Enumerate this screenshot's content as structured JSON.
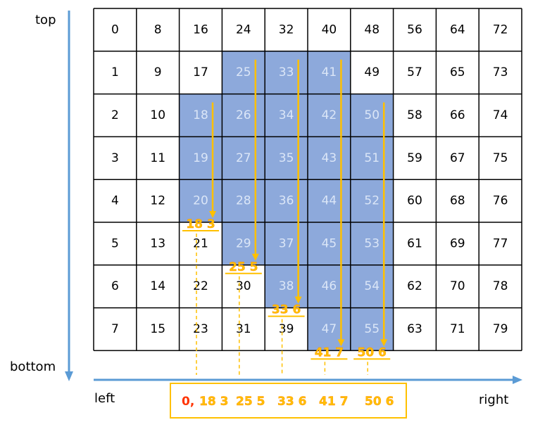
{
  "axes": {
    "top_label": "top",
    "bottom_label": "bottom",
    "left_label": "left",
    "right_label": "right"
  },
  "grid": {
    "rows": 8,
    "cols": 10,
    "shaded_columns": [
      {
        "col": 2,
        "values": [
          18,
          19,
          20
        ]
      },
      {
        "col": 3,
        "values": [
          25,
          26,
          27,
          28,
          29
        ]
      },
      {
        "col": 4,
        "values": [
          33,
          34,
          35,
          36,
          37,
          38
        ]
      },
      {
        "col": 5,
        "values": [
          41,
          42,
          43,
          44,
          45,
          46,
          47
        ]
      },
      {
        "col": 6,
        "values": [
          50,
          51,
          52,
          53,
          54,
          55
        ]
      }
    ]
  },
  "runs": [
    {
      "label": "18  3",
      "col": 2
    },
    {
      "label": "25  5",
      "col": 3
    },
    {
      "label": "33  6",
      "col": 4
    },
    {
      "label": "41  7",
      "col": 5
    },
    {
      "label": "50 6",
      "col": 6
    }
  ],
  "result_box": {
    "first": "0,",
    "items": [
      "18 3",
      "25 5",
      "33 6",
      "41 7",
      "50 6"
    ]
  },
  "colors": {
    "shade": "#8da9db",
    "shade_text": "#dbe6f7",
    "orange": "#ffc000",
    "orange_text": "#ff8c00",
    "red_text": "#ff3300",
    "axis_blue": "#5b9bd5",
    "grid_line": "#000000"
  }
}
